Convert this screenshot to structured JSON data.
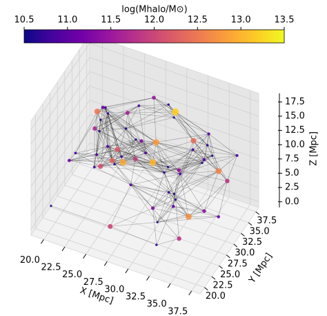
{
  "chart_data": {
    "type": "scatter3d",
    "colorbar_label": "log(Mhalo/M⊙)",
    "colormap": "plasma",
    "clim": [
      10.5,
      13.5
    ],
    "cticks": [
      10.5,
      {
        "value": 11,
        "label": "11.0"
      },
      11.5,
      {
        "value": 12,
        "label": "12.0"
      },
      12.5,
      {
        "value": 13,
        "label": "13.0"
      },
      13.5
    ],
    "xlabel": "X [Mpc]",
    "ylabel": "Y [Mpc]",
    "zlabel": "Z [Mpc]",
    "xlim": [
      18.5,
      38.5
    ],
    "ylim": [
      18.5,
      38.5
    ],
    "zlim": [
      -1,
      19
    ],
    "xticks": [
      {
        "value": 20,
        "label": "20.0"
      },
      22.5,
      {
        "value": 25,
        "label": "25.0"
      },
      27.5,
      {
        "value": 30,
        "label": "30.0"
      },
      32.5,
      {
        "value": 35,
        "label": "35.0"
      },
      37.5
    ],
    "yticks": [
      {
        "value": 20,
        "label": "20.0"
      },
      22.5,
      {
        "value": 25,
        "label": "25.0"
      },
      27.5,
      {
        "value": 30,
        "label": "30.0"
      },
      32.5,
      {
        "value": 35,
        "label": "35.0"
      },
      37.5
    ],
    "zticks": [
      {
        "value": 0,
        "label": "0.0"
      },
      2.5,
      {
        "value": 5,
        "label": "5.0"
      },
      7.5,
      {
        "value": 10,
        "label": "10.0"
      },
      12.5,
      {
        "value": 15,
        "label": "15.0"
      },
      17.5
    ],
    "grid": true,
    "x": [
      20,
      21.5,
      23,
      24,
      25.5,
      27,
      28,
      29.5,
      31,
      32.5,
      34,
      35.5,
      37,
      22,
      26,
      30,
      33,
      36,
      24.5,
      28.5,
      32,
      35,
      21,
      27.5,
      31.5,
      34.5,
      23.5,
      29,
      33.5,
      37.5,
      20.5,
      22.5,
      25,
      26.5,
      28,
      30.5,
      32,
      33,
      35,
      36.5,
      21,
      24,
      27,
      29,
      31,
      34,
      36,
      23,
      26,
      29.5,
      32.5,
      35.5,
      22,
      25.5,
      28,
      31,
      33.5,
      36,
      24,
      30
    ],
    "y": [
      21,
      25,
      30,
      35,
      22,
      28,
      33,
      37,
      24,
      29,
      34,
      20,
      27,
      31,
      36,
      23,
      26,
      32,
      38,
      21,
      25,
      30,
      35,
      22,
      28,
      33,
      37,
      24,
      29,
      34,
      36,
      20,
      26,
      31,
      22,
      27,
      35,
      19.5,
      30,
      25,
      33,
      28,
      21,
      37,
      24,
      29,
      32,
      34,
      23,
      36,
      27,
      20,
      30,
      26,
      38,
      31,
      22,
      35,
      25,
      28
    ],
    "z": [
      3,
      10,
      15,
      8,
      12,
      5,
      17,
      2,
      14,
      9,
      11,
      6,
      16,
      13,
      4,
      18,
      7,
      1,
      10,
      15,
      12,
      3,
      8,
      16,
      6,
      14,
      9,
      17,
      2,
      11,
      5,
      13,
      18,
      7,
      15,
      1,
      10,
      4,
      12,
      16,
      8,
      17,
      3,
      11,
      6,
      14,
      9,
      2,
      15,
      13,
      7,
      18,
      4,
      10,
      12,
      1,
      16,
      5,
      11,
      14
    ],
    "values": [
      10.6,
      10.8,
      11.2,
      10.7,
      12.1,
      10.9,
      11.5,
      10.6,
      13.0,
      11.0,
      10.7,
      11.8,
      10.6,
      12.5,
      10.9,
      11.3,
      10.6,
      11.1,
      10.8,
      12.9,
      10.7,
      11.4,
      10.6,
      12.2,
      10.8,
      11.0,
      11.6,
      10.6,
      12.7,
      10.9,
      10.6,
      11.2,
      10.7,
      11.9,
      10.8,
      10.6,
      12.4,
      10.7,
      11.1,
      10.6,
      11.7,
      10.8,
      12.0,
      10.6,
      11.3,
      10.9,
      12.6,
      10.7,
      11.0,
      13.2,
      10.6,
      11.5,
      10.8,
      12.3,
      10.7,
      11.1,
      10.6,
      11.8,
      10.9,
      12.8
    ]
  }
}
